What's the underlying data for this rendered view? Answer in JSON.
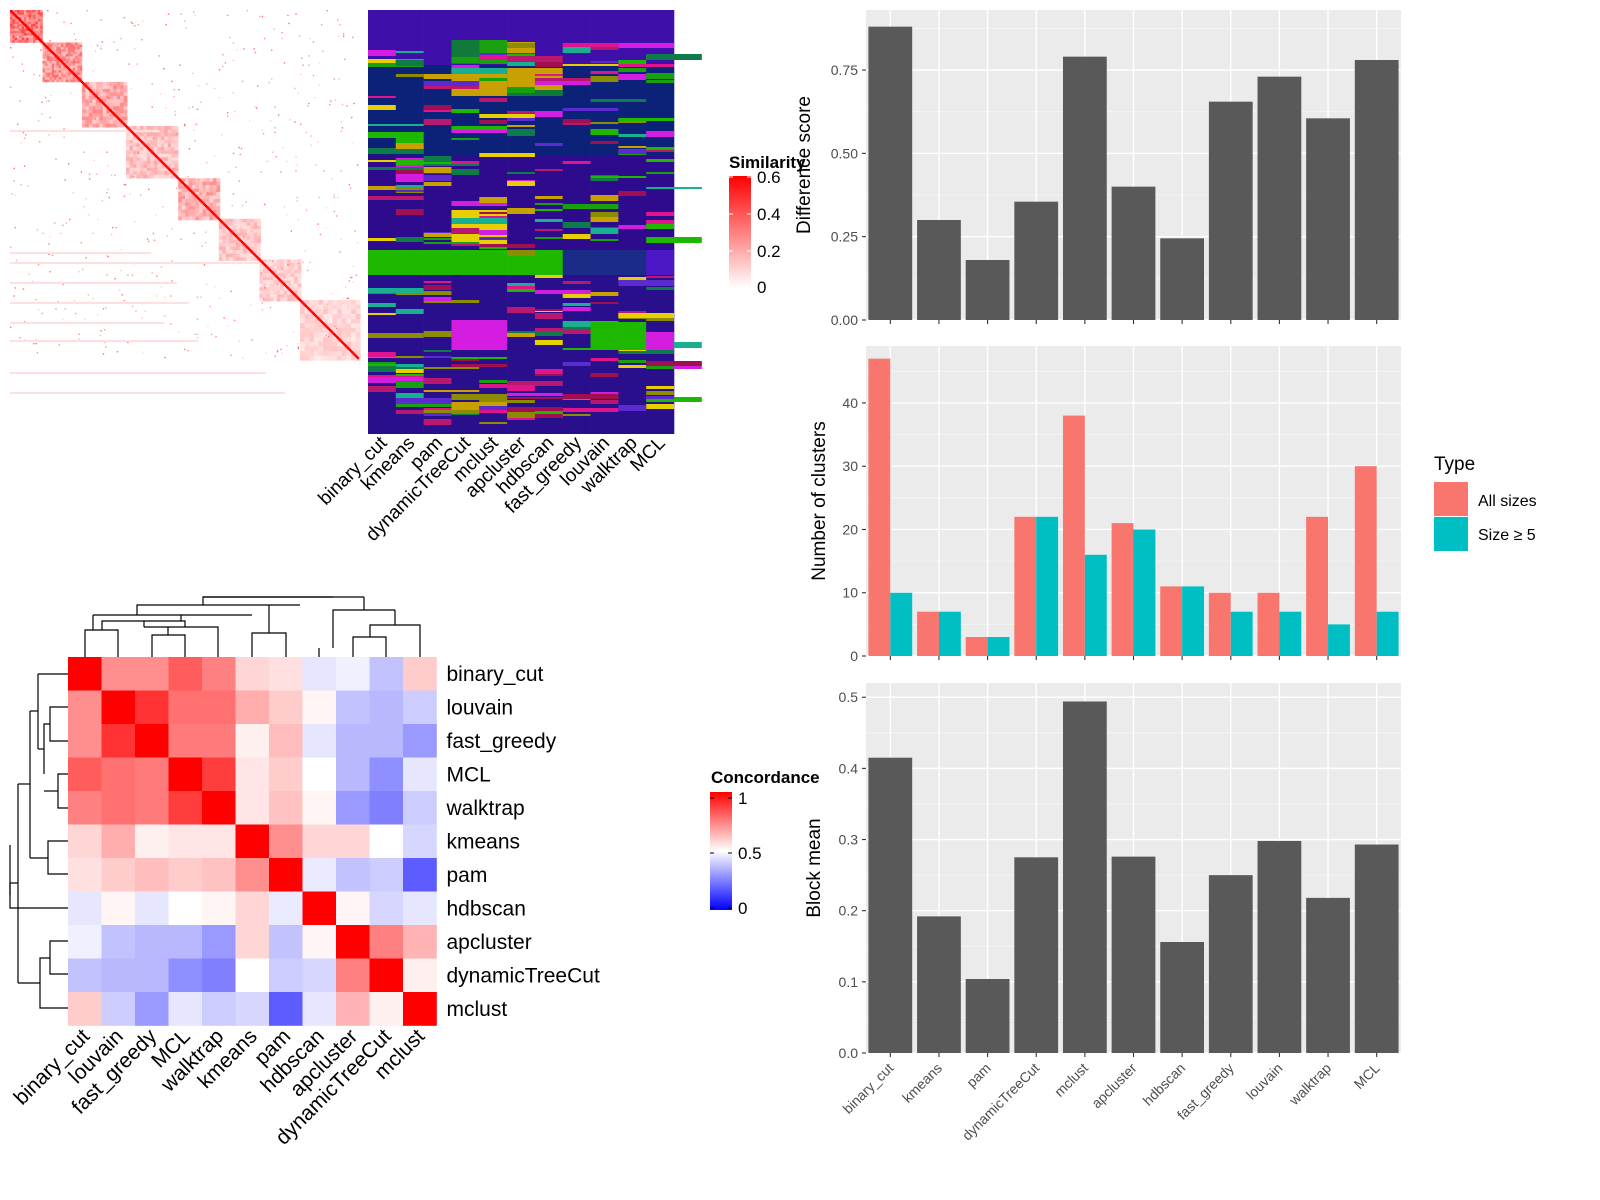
{
  "methods_bar": [
    "binary_cut",
    "kmeans",
    "pam",
    "dynamicTreeCut",
    "mclust",
    "apcluster",
    "hdbscan",
    "fast_greedy",
    "louvain",
    "walktrap",
    "MCL"
  ],
  "methods_heat1": [
    "binary_cut",
    "kmeans",
    "pam",
    "dynamicTreeCut",
    "mclust",
    "apcluster",
    "hdbscan",
    "fast_greedy",
    "louvain",
    "walktrap",
    "MCL"
  ],
  "methods_concord": [
    "binary_cut",
    "louvain",
    "fast_greedy",
    "MCL",
    "walktrap",
    "kmeans",
    "pam",
    "hdbscan",
    "apcluster",
    "dynamicTreeCut",
    "mclust"
  ],
  "similarity_legend": {
    "title": "Similarity",
    "ticks": [
      "0.6",
      "0.4",
      "0.2",
      "0"
    ]
  },
  "concordance_legend": {
    "title": "Concordance",
    "ticks": [
      "1",
      "0.5",
      "0"
    ]
  },
  "type_legend": {
    "title": "Type",
    "entries": [
      "All sizes",
      "Size ≥ 5"
    ],
    "colors": [
      "#F8766D",
      "#00BFC4"
    ]
  },
  "colors": {
    "bar": "#595959",
    "panel_bg": "#EBEBEB",
    "heat_hi": "#FF0000",
    "concord_lo": "#0000FF"
  },
  "chart_data": [
    {
      "type": "heatmap",
      "title": "",
      "legend_title": "Similarity",
      "color_range": [
        0,
        0.6
      ],
      "blocks_note": "",
      "rows": 300
    },
    {
      "type": "heatmap",
      "categories": [
        "binary_cut",
        "kmeans",
        "pam",
        "dynamicTreeCut",
        "mclust",
        "apcluster",
        "hdbscan",
        "fast_greedy",
        "louvain",
        "walktrap",
        "MCL"
      ]
    },
    {
      "type": "heatmap",
      "legend_title": "Concordance",
      "color_range": [
        0,
        1
      ],
      "categories": [
        "binary_cut",
        "louvain",
        "fast_greedy",
        "MCL",
        "walktrap",
        "kmeans",
        "pam",
        "hdbscan",
        "apcluster",
        "dynamicTreeCut",
        "mclust"
      ],
      "values": [
        [
          1.0,
          0.72,
          0.72,
          0.82,
          0.75,
          0.58,
          0.56,
          0.45,
          0.47,
          0.38,
          0.6
        ],
        [
          0.72,
          1.0,
          0.9,
          0.78,
          0.78,
          0.66,
          0.6,
          0.52,
          0.38,
          0.36,
          0.4
        ],
        [
          0.72,
          0.9,
          1.0,
          0.76,
          0.76,
          0.53,
          0.63,
          0.45,
          0.36,
          0.36,
          0.3
        ],
        [
          0.82,
          0.78,
          0.76,
          1.0,
          0.88,
          0.55,
          0.6,
          0.5,
          0.36,
          0.28,
          0.45
        ],
        [
          0.75,
          0.78,
          0.76,
          0.88,
          1.0,
          0.55,
          0.62,
          0.52,
          0.3,
          0.25,
          0.4
        ],
        [
          0.58,
          0.66,
          0.53,
          0.55,
          0.55,
          1.0,
          0.72,
          0.58,
          0.58,
          0.5,
          0.42
        ],
        [
          0.56,
          0.6,
          0.63,
          0.6,
          0.62,
          0.72,
          1.0,
          0.46,
          0.38,
          0.4,
          0.18
        ],
        [
          0.45,
          0.52,
          0.45,
          0.5,
          0.52,
          0.58,
          0.46,
          1.0,
          0.52,
          0.42,
          0.45
        ],
        [
          0.47,
          0.38,
          0.36,
          0.36,
          0.3,
          0.58,
          0.38,
          0.52,
          1.0,
          0.75,
          0.65
        ],
        [
          0.38,
          0.36,
          0.36,
          0.28,
          0.25,
          0.5,
          0.4,
          0.42,
          0.75,
          1.0,
          0.53
        ],
        [
          0.6,
          0.4,
          0.3,
          0.45,
          0.4,
          0.42,
          0.18,
          0.45,
          0.65,
          0.53,
          1.0
        ]
      ]
    },
    {
      "type": "bar",
      "ylabel": "Difference score",
      "ylim": [
        0,
        0.93
      ],
      "yticks": [
        "0.00",
        "0.25",
        "0.50",
        "0.75"
      ],
      "categories": [
        "binary_cut",
        "kmeans",
        "pam",
        "dynamicTreeCut",
        "mclust",
        "apcluster",
        "hdbscan",
        "fast_greedy",
        "louvain",
        "walktrap",
        "MCL"
      ],
      "values": [
        0.88,
        0.3,
        0.18,
        0.355,
        0.79,
        0.4,
        0.245,
        0.655,
        0.73,
        0.605,
        0.78
      ]
    },
    {
      "type": "bar",
      "ylabel": "Number of clusters",
      "ylim": [
        0,
        49
      ],
      "yticks": [
        "0",
        "10",
        "20",
        "30",
        "40"
      ],
      "categories": [
        "binary_cut",
        "kmeans",
        "pam",
        "dynamicTreeCut",
        "mclust",
        "apcluster",
        "hdbscan",
        "fast_greedy",
        "louvain",
        "walktrap",
        "MCL"
      ],
      "series": [
        {
          "name": "All sizes",
          "values": [
            47,
            7,
            3,
            22,
            38,
            21,
            11,
            10,
            10,
            22,
            30
          ]
        },
        {
          "name": "Size ≥ 5",
          "values": [
            10,
            7,
            3,
            22,
            16,
            20,
            11,
            7,
            7,
            5,
            7
          ]
        }
      ]
    },
    {
      "type": "bar",
      "ylabel": "Block mean",
      "ylim": [
        0,
        0.52
      ],
      "yticks": [
        "0.0",
        "0.1",
        "0.2",
        "0.3",
        "0.4",
        "0.5"
      ],
      "categories": [
        "binary_cut",
        "kmeans",
        "pam",
        "dynamicTreeCut",
        "mclust",
        "apcluster",
        "hdbscan",
        "fast_greedy",
        "louvain",
        "walktrap",
        "MCL"
      ],
      "values": [
        0.415,
        0.192,
        0.104,
        0.275,
        0.494,
        0.276,
        0.156,
        0.25,
        0.298,
        0.218,
        0.293
      ]
    }
  ]
}
